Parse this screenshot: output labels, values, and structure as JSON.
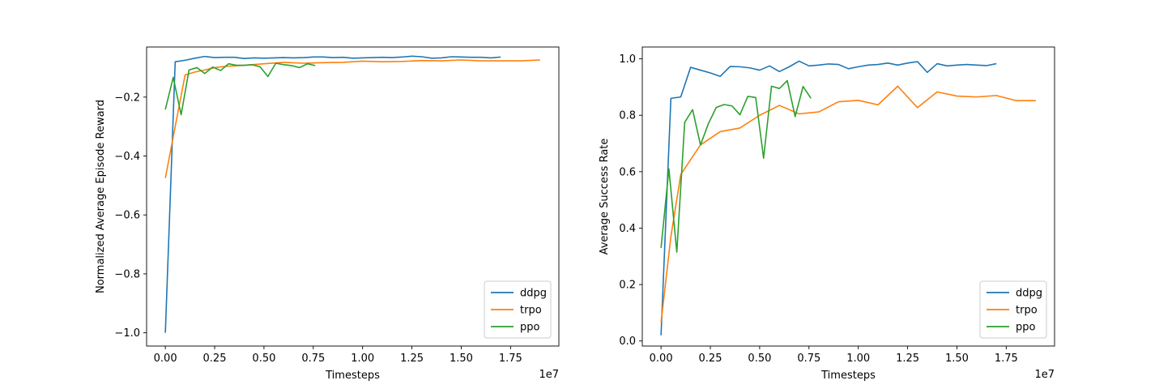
{
  "chart_data": [
    {
      "type": "line",
      "xlabel": "Timesteps",
      "ylabel": "Normalized Average Episode Reward",
      "x_offset_label": "1e7",
      "xlim": [
        -0.095,
        1.995
      ],
      "ylim": [
        -1.045,
        -0.03
      ],
      "x_ticks": [
        0.0,
        0.25,
        0.5,
        0.75,
        1.0,
        1.25,
        1.5,
        1.75
      ],
      "x_tick_labels": [
        "0.00",
        "0.25",
        "0.50",
        "0.75",
        "1.00",
        "1.25",
        "1.50",
        "1.75"
      ],
      "y_ticks": [
        -1.0,
        -0.8,
        -0.6,
        -0.4,
        -0.2
      ],
      "y_tick_labels": [
        "−1.0",
        "−0.8",
        "−0.6",
        "−0.4",
        "−0.2"
      ],
      "legend_position": "lower right",
      "grid": false,
      "series": [
        {
          "name": "ddpg",
          "color": "#1f77b4",
          "x": [
            0.0,
            0.05,
            0.1,
            0.15,
            0.2,
            0.25,
            0.3,
            0.35,
            0.4,
            0.45,
            0.5,
            0.55,
            0.6,
            0.65,
            0.7,
            0.75,
            0.8,
            0.85,
            0.9,
            0.95,
            1.0,
            1.05,
            1.1,
            1.15,
            1.2,
            1.25,
            1.3,
            1.35,
            1.4,
            1.45,
            1.5,
            1.55,
            1.6,
            1.65,
            1.7
          ],
          "y": [
            -1.0,
            -0.08,
            -0.075,
            -0.068,
            -0.062,
            -0.066,
            -0.065,
            -0.065,
            -0.069,
            -0.067,
            -0.068,
            -0.067,
            -0.066,
            -0.067,
            -0.066,
            -0.064,
            -0.064,
            -0.066,
            -0.065,
            -0.068,
            -0.067,
            -0.066,
            -0.065,
            -0.066,
            -0.064,
            -0.061,
            -0.063,
            -0.068,
            -0.067,
            -0.063,
            -0.064,
            -0.065,
            -0.065,
            -0.067,
            -0.064
          ]
        },
        {
          "name": "trpo",
          "color": "#ff7f0e",
          "x": [
            0.0,
            0.05,
            0.1,
            0.15,
            0.2,
            0.25,
            0.3,
            0.4,
            0.5,
            0.6,
            0.7,
            0.8,
            0.9,
            1.0,
            1.1,
            1.2,
            1.3,
            1.4,
            1.5,
            1.6,
            1.7,
            1.8,
            1.9
          ],
          "y": [
            -0.475,
            -0.3,
            -0.125,
            -0.115,
            -0.108,
            -0.1,
            -0.096,
            -0.092,
            -0.087,
            -0.082,
            -0.085,
            -0.083,
            -0.082,
            -0.078,
            -0.08,
            -0.079,
            -0.076,
            -0.077,
            -0.074,
            -0.077,
            -0.077,
            -0.077,
            -0.074
          ]
        },
        {
          "name": "ppo",
          "color": "#2ca02c",
          "x": [
            0.0,
            0.04,
            0.08,
            0.12,
            0.16,
            0.2,
            0.24,
            0.28,
            0.32,
            0.36,
            0.4,
            0.44,
            0.48,
            0.52,
            0.56,
            0.6,
            0.64,
            0.68,
            0.72,
            0.76
          ],
          "y": [
            -0.242,
            -0.133,
            -0.26,
            -0.108,
            -0.1,
            -0.12,
            -0.098,
            -0.11,
            -0.087,
            -0.092,
            -0.092,
            -0.09,
            -0.097,
            -0.13,
            -0.085,
            -0.09,
            -0.093,
            -0.1,
            -0.087,
            -0.093
          ]
        }
      ]
    },
    {
      "type": "line",
      "xlabel": "Timesteps",
      "ylabel": "Average Success Rate",
      "x_offset_label": "1e7",
      "xlim": [
        -0.095,
        1.995
      ],
      "ylim": [
        -0.018,
        1.042
      ],
      "x_ticks": [
        0.0,
        0.25,
        0.5,
        0.75,
        1.0,
        1.25,
        1.5,
        1.75
      ],
      "x_tick_labels": [
        "0.00",
        "0.25",
        "0.50",
        "0.75",
        "1.00",
        "1.25",
        "1.50",
        "1.75"
      ],
      "y_ticks": [
        0.0,
        0.2,
        0.4,
        0.6,
        0.8,
        1.0
      ],
      "y_tick_labels": [
        "0.0",
        "0.2",
        "0.4",
        "0.6",
        "0.8",
        "1.0"
      ],
      "legend_position": "lower right",
      "grid": false,
      "series": [
        {
          "name": "ddpg",
          "color": "#1f77b4",
          "x": [
            0.0,
            0.05,
            0.1,
            0.15,
            0.2,
            0.25,
            0.3,
            0.35,
            0.4,
            0.45,
            0.5,
            0.55,
            0.6,
            0.65,
            0.7,
            0.75,
            0.8,
            0.85,
            0.9,
            0.95,
            1.0,
            1.05,
            1.1,
            1.15,
            1.2,
            1.25,
            1.3,
            1.35,
            1.4,
            1.45,
            1.5,
            1.55,
            1.6,
            1.65,
            1.7
          ],
          "y": [
            0.02,
            0.86,
            0.865,
            0.97,
            0.96,
            0.95,
            0.938,
            0.973,
            0.972,
            0.968,
            0.96,
            0.975,
            0.955,
            0.972,
            0.992,
            0.975,
            0.978,
            0.982,
            0.98,
            0.965,
            0.972,
            0.978,
            0.98,
            0.985,
            0.978,
            0.985,
            0.99,
            0.952,
            0.983,
            0.975,
            0.978,
            0.98,
            0.978,
            0.976,
            0.983
          ]
        },
        {
          "name": "trpo",
          "color": "#ff7f0e",
          "x": [
            0.0,
            0.05,
            0.1,
            0.2,
            0.3,
            0.4,
            0.5,
            0.6,
            0.7,
            0.8,
            0.9,
            1.0,
            1.1,
            1.2,
            1.3,
            1.4,
            1.5,
            1.6,
            1.7,
            1.8,
            1.9
          ],
          "y": [
            0.065,
            0.37,
            0.59,
            0.695,
            0.742,
            0.755,
            0.8,
            0.835,
            0.805,
            0.812,
            0.848,
            0.853,
            0.837,
            0.903,
            0.827,
            0.883,
            0.868,
            0.865,
            0.87,
            0.852,
            0.852
          ]
        },
        {
          "name": "ppo",
          "color": "#2ca02c",
          "x": [
            0.0,
            0.04,
            0.08,
            0.12,
            0.16,
            0.2,
            0.24,
            0.28,
            0.32,
            0.36,
            0.4,
            0.44,
            0.48,
            0.52,
            0.56,
            0.6,
            0.64,
            0.68,
            0.72,
            0.76
          ],
          "y": [
            0.33,
            0.61,
            0.315,
            0.775,
            0.82,
            0.695,
            0.77,
            0.828,
            0.838,
            0.833,
            0.802,
            0.867,
            0.863,
            0.648,
            0.903,
            0.895,
            0.923,
            0.795,
            0.902,
            0.86
          ]
        }
      ]
    }
  ]
}
